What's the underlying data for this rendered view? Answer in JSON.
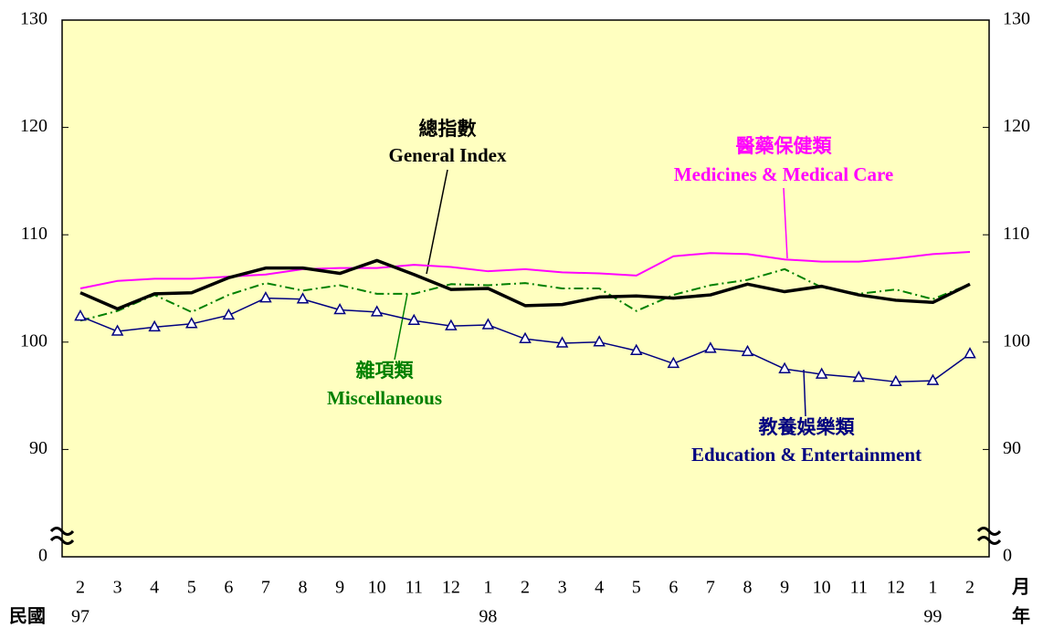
{
  "chart_data": {
    "type": "line",
    "categories": [
      "2",
      "3",
      "4",
      "5",
      "6",
      "7",
      "8",
      "9",
      "10",
      "11",
      "12",
      "1",
      "2",
      "3",
      "4",
      "5",
      "6",
      "7",
      "8",
      "9",
      "10",
      "11",
      "12",
      "1",
      "2"
    ],
    "year_labels": [
      "97",
      null,
      null,
      null,
      null,
      null,
      null,
      null,
      null,
      null,
      null,
      "98",
      null,
      null,
      null,
      null,
      null,
      null,
      null,
      null,
      null,
      null,
      null,
      "99",
      null
    ],
    "x_unit_month": "月",
    "x_unit_year": "年",
    "x_era_label": "民國",
    "ylim": [
      80,
      130
    ],
    "yticks": [
      {
        "value": 80,
        "label": "0"
      },
      90,
      100,
      110,
      120,
      130
    ],
    "plot_background": "#ffffc0",
    "series": [
      {
        "name": "General Index",
        "name_zh": "總指數",
        "color": "#000000",
        "values": [
          104.6,
          103.1,
          104.5,
          104.6,
          106.0,
          106.9,
          106.9,
          106.4,
          107.6,
          106.3,
          104.9,
          105.0,
          103.4,
          103.5,
          104.2,
          104.3,
          104.1,
          104.4,
          105.4,
          104.7,
          105.2,
          104.4,
          103.9,
          103.7,
          105.4
        ]
      },
      {
        "name": "Medicines & Medical Care",
        "name_zh": "醫藥保健類",
        "color": "#ff00ff",
        "values": [
          105.0,
          105.7,
          105.9,
          105.9,
          106.1,
          106.3,
          106.8,
          106.9,
          106.9,
          107.2,
          107.0,
          106.6,
          106.8,
          106.5,
          106.4,
          106.2,
          108.0,
          108.3,
          108.2,
          107.7,
          107.5,
          107.5,
          107.8,
          108.2,
          108.4
        ]
      },
      {
        "name": "Miscellaneous",
        "name_zh": "雜項類",
        "color": "#008000",
        "values": [
          102.0,
          102.9,
          104.4,
          102.8,
          104.4,
          105.5,
          104.8,
          105.3,
          104.5,
          104.5,
          105.4,
          105.3,
          105.5,
          105.0,
          105.0,
          102.9,
          104.4,
          105.3,
          105.8,
          106.8,
          105.1,
          104.5,
          104.9,
          104.0,
          105.4
        ]
      },
      {
        "name": "Education & Entertainment",
        "name_zh": "教養娛樂類",
        "color": "#000080",
        "values": [
          102.4,
          101.0,
          101.4,
          101.7,
          102.5,
          104.1,
          104.0,
          103.0,
          102.8,
          102.0,
          101.5,
          101.6,
          100.3,
          99.9,
          100.0,
          99.2,
          98.0,
          99.4,
          99.1,
          97.5,
          97.0,
          96.7,
          96.3,
          96.4,
          98.9
        ]
      }
    ]
  }
}
